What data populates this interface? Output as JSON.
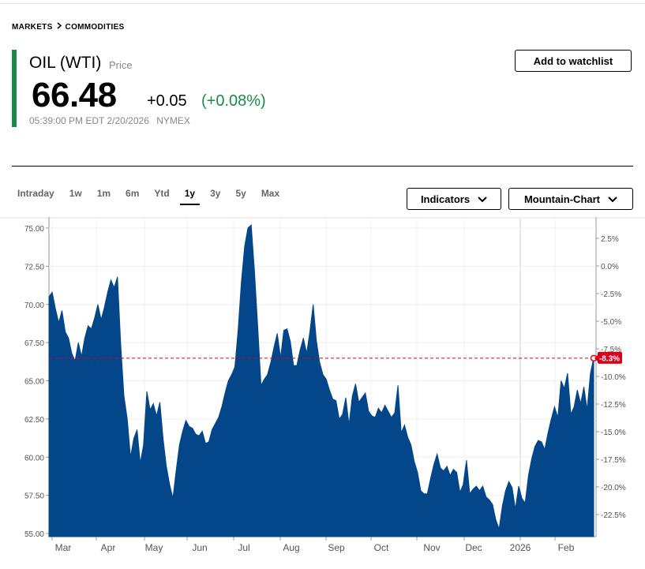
{
  "breadcrumb": {
    "markets": "MARKETS",
    "commodities": "COMMODITIES"
  },
  "quote": {
    "name": "OIL (WTI)",
    "price_label": "Price",
    "last": "66.48",
    "change": "+0.05",
    "change_pct": "(+0.08%)",
    "timestamp": "05:39:00 PM EDT 2/20/2026",
    "exchange": "NYMEX"
  },
  "watchlist_label": "Add to watchlist",
  "ranges": [
    "Intraday",
    "1w",
    "1m",
    "6m",
    "Ytd",
    "1y",
    "3y",
    "5y",
    "Max"
  ],
  "active_range": "1y",
  "indicators_label": "Indicators",
  "chart_type_label": "Mountain-Chart",
  "colors": {
    "positive": "#1a8a4c",
    "fill": "#03478a",
    "marker": "#d9001b"
  },
  "chart_data": {
    "type": "area",
    "ylim": [
      55,
      75.3
    ],
    "y_ticks": [
      "75.00",
      "72.50",
      "70.00",
      "67.50",
      "65.00",
      "62.50",
      "60.00",
      "57.50",
      "55.00"
    ],
    "y2_ticks": [
      "2.5%",
      "0.0%",
      "-2.5%",
      "-5.0%",
      "-7.5%",
      "-10.0%",
      "-12.5%",
      "-15.0%",
      "-17.5%",
      "-20.0%",
      "-22.5%"
    ],
    "x_labels": [
      "Mar",
      "Apr",
      "May",
      "Jun",
      "Jul",
      "Aug",
      "Sep",
      "Oct",
      "Nov",
      "Dec",
      "2026",
      "Feb"
    ],
    "reference_price": 66.48,
    "last_pct_label": "-8.3%",
    "values": [
      70.5,
      70.8,
      69.7,
      68.8,
      69.6,
      68.2,
      67.8,
      66.8,
      66.3,
      67.5,
      66.6,
      67.8,
      68.6,
      68.4,
      69.1,
      70.0,
      69.0,
      69.8,
      70.8,
      71.6,
      71.1,
      71.8,
      67.4,
      64.0,
      62.5,
      60.0,
      61.2,
      61.8,
      59.6,
      60.8,
      64.3,
      63.1,
      63.5,
      62.7,
      63.6,
      61.2,
      59.4,
      58.2,
      57.3,
      59.1,
      60.8,
      61.7,
      62.4,
      62.0,
      61.9,
      61.5,
      61.4,
      61.7,
      60.9,
      61.0,
      61.8,
      62.2,
      62.6,
      63.3,
      64.2,
      65.0,
      65.4,
      65.9,
      68.3,
      71.5,
      73.8,
      75.0,
      75.2,
      72.2,
      68.6,
      64.7,
      65.1,
      65.4,
      66.2,
      67.2,
      68.1,
      66.5,
      68.3,
      68.4,
      67.6,
      66.0,
      66.0,
      67.0,
      67.8,
      66.8,
      68.2,
      70.0,
      67.6,
      66.2,
      65.4,
      65.1,
      64.4,
      63.8,
      63.7,
      62.5,
      62.8,
      63.9,
      62.1,
      64.0,
      64.8,
      63.6,
      63.9,
      64.2,
      63.0,
      62.7,
      62.6,
      63.2,
      62.9,
      63.4,
      63.0,
      62.6,
      62.9,
      64.7,
      61.6,
      62.1,
      61.3,
      60.8,
      59.7,
      59.0,
      57.8,
      57.6,
      57.6,
      58.6,
      59.5,
      60.2,
      59.3,
      59.1,
      59.4,
      58.8,
      59.2,
      59.0,
      57.7,
      58.2,
      59.8,
      57.6,
      57.9,
      58.1,
      57.8,
      58.1,
      57.4,
      57.2,
      56.9,
      55.9,
      55.3,
      56.8,
      57.8,
      58.4,
      58.0,
      56.6,
      58.1,
      57.3,
      57.0,
      58.8,
      59.9,
      60.7,
      61.1,
      61.0,
      60.5,
      61.6,
      62.5,
      63.3,
      62.6,
      65.0,
      64.5,
      65.5,
      62.8,
      63.3,
      64.4,
      63.5,
      64.6,
      63.1,
      65.5,
      66.48
    ],
    "series": [
      {
        "name": "OIL (WTI)"
      }
    ]
  }
}
